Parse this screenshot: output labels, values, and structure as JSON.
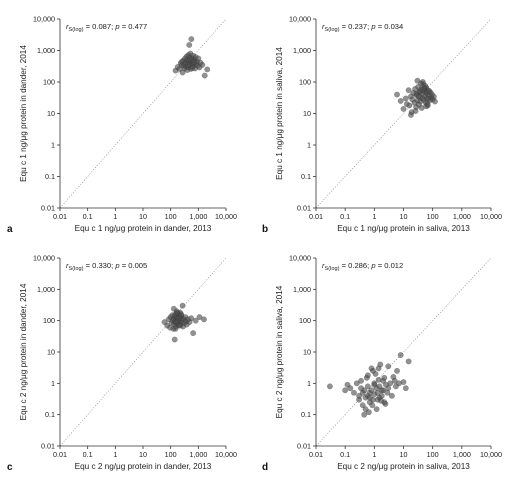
{
  "chart_data": [
    {
      "panel": "a",
      "type": "scatter",
      "xlabel": "Equ c 1 ng/μg protein in dander, 2013",
      "ylabel": "Equ c 1 ng/μg protein in dander, 2014",
      "stat": {
        "r_sym": "r",
        "r_sub": "S(log)",
        "r_val": " = 0.087; ",
        "p_sym": "p",
        "p_val": " = 0.477"
      },
      "xscale": "log",
      "yscale": "log",
      "xlim": [
        0.01,
        10000
      ],
      "ylim": [
        0.01,
        10000
      ],
      "xticks": [
        "0.01",
        "0.1",
        "1",
        "10",
        "100",
        "1,000",
        "10,000"
      ],
      "yticks": [
        "0.01",
        "0.1",
        "1",
        "10",
        "100",
        "1,000",
        "10,000"
      ],
      "reference_line": "y = x",
      "x": [
        150,
        180,
        210,
        230,
        250,
        270,
        290,
        300,
        320,
        330,
        350,
        360,
        380,
        400,
        410,
        420,
        440,
        450,
        470,
        480,
        500,
        520,
        540,
        560,
        580,
        600,
        620,
        650,
        680,
        700,
        730,
        760,
        800,
        850,
        900,
        950,
        1000,
        1100,
        1200,
        1400,
        1700,
        2100,
        260,
        340,
        430,
        520,
        610,
        700,
        470,
        560
      ],
      "y": [
        230,
        300,
        260,
        400,
        350,
        200,
        480,
        330,
        270,
        560,
        420,
        310,
        650,
        240,
        500,
        380,
        720,
        290,
        450,
        600,
        340,
        800,
        260,
        470,
        390,
        550,
        310,
        680,
        430,
        360,
        500,
        270,
        620,
        380,
        440,
        330,
        560,
        290,
        410,
        350,
        160,
        250,
        450,
        380,
        340,
        520,
        280,
        430,
        1500,
        2300
      ]
    },
    {
      "panel": "b",
      "type": "scatter",
      "xlabel": "Equ c 1 ng/μg protein in saliva, 2013",
      "ylabel": "Equ c 1 ng/μg protein in saliva, 2014",
      "stat": {
        "r_sym": "r",
        "r_sub": "S(log)",
        "r_val": " = 0.237; ",
        "p_sym": "p",
        "p_val": " = 0.034"
      },
      "xscale": "log",
      "yscale": "log",
      "xlim": [
        0.01,
        10000
      ],
      "ylim": [
        0.01,
        10000
      ],
      "xticks": [
        "0.01",
        "0.1",
        "1",
        "10",
        "100",
        "1,000",
        "10,000"
      ],
      "yticks": [
        "0.01",
        "0.1",
        "1",
        "10",
        "100",
        "1,000",
        "10,000"
      ],
      "reference_line": "y = x",
      "x": [
        6,
        8,
        10,
        12,
        13,
        15,
        16,
        18,
        19,
        20,
        22,
        24,
        25,
        27,
        28,
        30,
        32,
        34,
        35,
        37,
        38,
        40,
        42,
        44,
        45,
        48,
        50,
        52,
        55,
        58,
        60,
        62,
        65,
        68,
        70,
        75,
        80,
        85,
        90,
        95,
        100,
        110,
        120,
        18,
        26,
        36,
        46,
        56,
        66,
        30,
        40,
        50,
        60,
        70,
        28,
        33,
        44,
        52,
        64,
        76
      ],
      "y": [
        40,
        25,
        14,
        30,
        20,
        55,
        18,
        35,
        11,
        28,
        45,
        22,
        60,
        16,
        38,
        26,
        70,
        19,
        48,
        33,
        24,
        58,
        15,
        42,
        30,
        85,
        27,
        50,
        36,
        22,
        65,
        44,
        31,
        18,
        54,
        38,
        26,
        46,
        32,
        40,
        28,
        34,
        24,
        9,
        12,
        48,
        100,
        75,
        20,
        110,
        90,
        62,
        17,
        29,
        42,
        36,
        56,
        64,
        48,
        52
      ]
    },
    {
      "panel": "c",
      "type": "scatter",
      "xlabel": "Equ c 2 ng/μg protein in dander, 2013",
      "ylabel": "Equ c 2 ng/μg protein in dander, 2014",
      "stat": {
        "r_sym": "r",
        "r_sub": "S(log)",
        "r_val": " = 0.330; ",
        "p_sym": "p",
        "p_val": " = 0.005"
      },
      "xscale": "log",
      "yscale": "log",
      "xlim": [
        0.01,
        10000
      ],
      "ylim": [
        0.01,
        10000
      ],
      "xticks": [
        "0.01",
        "0.1",
        "1",
        "10",
        "100",
        "1,000",
        "10,000"
      ],
      "yticks": [
        "0.01",
        "0.1",
        "1",
        "10",
        "100",
        "1,000",
        "10,000"
      ],
      "reference_line": "y = x",
      "x": [
        60,
        75,
        85,
        95,
        100,
        110,
        115,
        120,
        125,
        130,
        135,
        140,
        145,
        150,
        155,
        160,
        165,
        170,
        175,
        180,
        185,
        190,
        200,
        210,
        220,
        230,
        240,
        250,
        260,
        270,
        280,
        300,
        320,
        340,
        360,
        380,
        420,
        480,
        550,
        650,
        800,
        1100,
        1600,
        140,
        170,
        200,
        150,
        180,
        210,
        240,
        130,
        160,
        190,
        220
      ],
      "y": [
        90,
        70,
        110,
        60,
        130,
        85,
        150,
        100,
        55,
        120,
        80,
        140,
        95,
        160,
        65,
        115,
        200,
        88,
        125,
        75,
        170,
        105,
        135,
        92,
        180,
        78,
        145,
        118,
        98,
        300,
        65,
        112,
        85,
        130,
        95,
        75,
        110,
        90,
        120,
        40,
        100,
        130,
        110,
        25,
        180,
        70,
        55,
        95,
        140,
        160,
        240,
        90,
        120,
        70
      ]
    },
    {
      "panel": "d",
      "type": "scatter",
      "xlabel": "Equ c 2 ng/μg protein in saliva, 2013",
      "ylabel": "Equ c 2 ng/μg protein in saliva, 2014",
      "stat": {
        "r_sym": "r",
        "r_sub": "S(log)",
        "r_val": " = 0.286; ",
        "p_sym": "p",
        "p_val": " = 0.012"
      },
      "xscale": "log",
      "yscale": "log",
      "xlim": [
        0.01,
        10000
      ],
      "ylim": [
        0.01,
        10000
      ],
      "xticks": [
        "0.01",
        "0.1",
        "1",
        "10",
        "100",
        "1,000",
        "10,000"
      ],
      "yticks": [
        "0.01",
        "0.1",
        "1",
        "10",
        "100",
        "1,000",
        "10,000"
      ],
      "reference_line": "y = x",
      "x": [
        0.03,
        0.1,
        0.12,
        0.15,
        0.2,
        0.25,
        0.3,
        0.3,
        0.35,
        0.4,
        0.4,
        0.45,
        0.5,
        0.5,
        0.55,
        0.6,
        0.6,
        0.7,
        0.7,
        0.8,
        0.8,
        0.9,
        1.0,
        1.0,
        1.1,
        1.2,
        1.2,
        1.3,
        1.4,
        1.5,
        1.5,
        1.6,
        1.8,
        2.0,
        2.0,
        2.2,
        2.5,
        2.8,
        3.0,
        3.0,
        3.5,
        4.0,
        4.5,
        5.0,
        5.5,
        6.0,
        7.0,
        8.0,
        10,
        12,
        15,
        0.45,
        0.65,
        0.85,
        1.3,
        1.7,
        2.4,
        0.35,
        0.6,
        0.9,
        1.4,
        2.2,
        1.0,
        1.8,
        0.7
      ],
      "y": [
        0.8,
        0.6,
        0.9,
        0.7,
        0.5,
        1.0,
        0.3,
        0.4,
        1.2,
        0.5,
        0.2,
        0.6,
        0.35,
        0.15,
        1.5,
        0.4,
        0.8,
        0.25,
        0.5,
        3.0,
        0.6,
        0.3,
        1.0,
        0.45,
        2.0,
        0.7,
        0.15,
        0.5,
        1.3,
        0.35,
        0.8,
        4.0,
        0.4,
        0.6,
        1.2,
        0.25,
        0.9,
        0.5,
        3.5,
        0.7,
        1.0,
        0.4,
        1.6,
        1.2,
        0.8,
        2.5,
        1.0,
        8.0,
        1.1,
        0.7,
        5.0,
        0.1,
        0.12,
        0.2,
        0.3,
        0.28,
        0.22,
        0.7,
        1.8,
        2.5,
        3.0,
        1.5,
        0.9,
        0.6,
        0.35
      ]
    }
  ]
}
